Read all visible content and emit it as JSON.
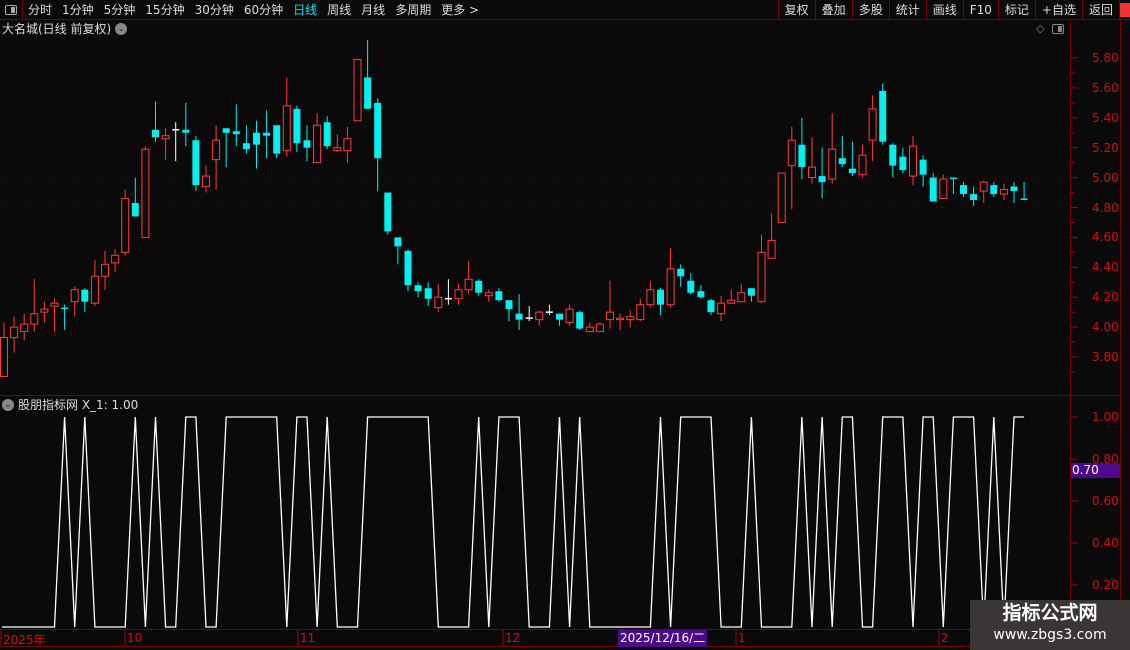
{
  "toolbar": {
    "periods": [
      "分时",
      "1分钟",
      "5分钟",
      "15分钟",
      "30分钟",
      "60分钟",
      "日线",
      "周线",
      "月线",
      "多周期",
      "更多 >"
    ],
    "active_period": "日线",
    "buttons": [
      "复权",
      "叠加",
      "多股",
      "统计",
      "画线",
      "F10",
      "标记",
      "+自选",
      "返回"
    ]
  },
  "chart": {
    "title": "大名城(日线 前复权)",
    "price_ticks": [
      "5.80",
      "5.60",
      "5.40",
      "5.20",
      "5.00",
      "4.80",
      "4.60",
      "4.40",
      "4.20",
      "4.00",
      "3.80"
    ],
    "colors": {
      "up": "#ff3b3b",
      "down": "#00f0f0",
      "flat": "#ffffff",
      "grid": "#5a0000",
      "axis_text": "#d01010"
    }
  },
  "indicator": {
    "title": "股朋指标网 X_1: 1.00",
    "ticks": [
      "1.00",
      "0.80",
      "0.60",
      "0.40",
      "0.20"
    ],
    "cursor_value": "0.70"
  },
  "time_axis": {
    "labels": [
      "2025年",
      "10",
      "11",
      "12",
      "1",
      "2"
    ],
    "highlight": "2025/12/16/二"
  },
  "watermark": {
    "line1": "指标公式网",
    "line2": "www.zbgs3.com"
  },
  "chart_data": {
    "type": "candlestick",
    "ylim": [
      3.7,
      5.95
    ],
    "ohlc": [
      [
        3.67,
        4.03,
        3.67,
        3.93
      ],
      [
        3.93,
        4.07,
        3.83,
        4.0
      ],
      [
        3.97,
        4.09,
        3.91,
        4.02
      ],
      [
        4.02,
        4.32,
        3.97,
        4.09
      ],
      [
        4.1,
        4.17,
        4.03,
        4.12
      ],
      [
        4.14,
        4.19,
        3.97,
        4.16
      ],
      [
        4.13,
        4.15,
        3.98,
        4.12
      ],
      [
        4.17,
        4.27,
        4.07,
        4.25
      ],
      [
        4.25,
        4.26,
        4.1,
        4.17
      ],
      [
        4.16,
        4.45,
        4.14,
        4.34
      ],
      [
        4.34,
        4.51,
        4.25,
        4.42
      ],
      [
        4.43,
        4.52,
        4.37,
        4.48
      ],
      [
        4.5,
        4.92,
        4.48,
        4.86
      ],
      [
        4.83,
        5.0,
        4.74,
        4.74
      ],
      [
        4.6,
        5.21,
        4.6,
        5.19
      ],
      [
        5.32,
        5.51,
        5.24,
        5.27
      ],
      [
        5.26,
        5.33,
        5.12,
        5.28
      ],
      [
        5.32,
        5.37,
        5.11,
        5.32
      ],
      [
        5.32,
        5.5,
        5.21,
        5.3
      ],
      [
        5.25,
        5.28,
        4.91,
        4.95
      ],
      [
        4.94,
        5.08,
        4.9,
        5.01
      ],
      [
        5.12,
        5.35,
        4.92,
        5.25
      ],
      [
        5.33,
        5.33,
        5.07,
        5.3
      ],
      [
        5.31,
        5.49,
        5.21,
        5.29
      ],
      [
        5.23,
        5.35,
        5.16,
        5.19
      ],
      [
        5.3,
        5.38,
        5.06,
        5.22
      ],
      [
        5.3,
        5.45,
        5.13,
        5.28
      ],
      [
        5.35,
        5.35,
        5.13,
        5.16
      ],
      [
        5.18,
        5.67,
        5.14,
        5.48
      ],
      [
        5.46,
        5.48,
        5.17,
        5.23
      ],
      [
        5.25,
        5.35,
        5.11,
        5.2
      ],
      [
        5.1,
        5.43,
        5.1,
        5.35
      ],
      [
        5.37,
        5.41,
        5.19,
        5.21
      ],
      [
        5.18,
        5.29,
        5.17,
        5.2
      ],
      [
        5.18,
        5.34,
        5.1,
        5.26
      ],
      [
        5.38,
        5.79,
        5.38,
        5.79
      ],
      [
        5.67,
        5.92,
        5.46,
        5.46
      ],
      [
        5.5,
        5.53,
        4.91,
        5.13
      ],
      [
        4.9,
        4.9,
        4.62,
        4.64
      ],
      [
        4.6,
        4.6,
        4.42,
        4.54
      ],
      [
        4.51,
        4.52,
        4.24,
        4.28
      ],
      [
        4.28,
        4.3,
        4.2,
        4.24
      ],
      [
        4.26,
        4.3,
        4.14,
        4.19
      ],
      [
        4.13,
        4.29,
        4.1,
        4.2
      ],
      [
        4.19,
        4.32,
        4.15,
        4.19
      ],
      [
        4.19,
        4.29,
        4.15,
        4.25
      ],
      [
        4.25,
        4.44,
        4.22,
        4.32
      ],
      [
        4.31,
        4.32,
        4.21,
        4.23
      ],
      [
        4.21,
        4.25,
        4.17,
        4.23
      ],
      [
        4.24,
        4.26,
        4.17,
        4.18
      ],
      [
        4.18,
        4.18,
        4.04,
        4.12
      ],
      [
        4.09,
        4.22,
        3.98,
        4.05
      ],
      [
        4.06,
        4.14,
        4.04,
        4.06
      ],
      [
        4.05,
        4.11,
        4.01,
        4.1
      ],
      [
        4.1,
        4.15,
        4.08,
        4.1
      ],
      [
        4.09,
        4.09,
        4.01,
        4.05
      ],
      [
        4.03,
        4.15,
        4.01,
        4.12
      ],
      [
        4.1,
        4.11,
        3.98,
        3.99
      ],
      [
        3.97,
        4.03,
        3.97,
        4.0
      ],
      [
        3.97,
        4.03,
        3.97,
        4.02
      ],
      [
        4.05,
        4.31,
        3.99,
        4.1
      ],
      [
        4.05,
        4.09,
        3.98,
        4.06
      ],
      [
        4.05,
        4.11,
        4.0,
        4.07
      ],
      [
        4.05,
        4.19,
        4.04,
        4.15
      ],
      [
        4.15,
        4.31,
        4.13,
        4.25
      ],
      [
        4.25,
        4.26,
        4.08,
        4.15
      ],
      [
        4.15,
        4.53,
        4.13,
        4.39
      ],
      [
        4.39,
        4.42,
        4.27,
        4.34
      ],
      [
        4.31,
        4.36,
        4.22,
        4.23
      ],
      [
        4.24,
        4.28,
        4.19,
        4.2
      ],
      [
        4.18,
        4.19,
        4.08,
        4.1
      ],
      [
        4.09,
        4.21,
        4.04,
        4.16
      ],
      [
        4.16,
        4.25,
        4.16,
        4.18
      ],
      [
        4.17,
        4.29,
        4.17,
        4.23
      ],
      [
        4.26,
        4.26,
        4.17,
        4.21
      ],
      [
        4.17,
        4.62,
        4.16,
        4.5
      ],
      [
        4.46,
        4.76,
        4.46,
        4.58
      ],
      [
        4.7,
        5.03,
        4.7,
        5.03
      ],
      [
        5.08,
        5.34,
        4.79,
        5.25
      ],
      [
        5.22,
        5.4,
        4.99,
        5.07
      ],
      [
        5.0,
        5.27,
        4.96,
        5.07
      ],
      [
        5.01,
        5.2,
        4.86,
        4.97
      ],
      [
        4.99,
        5.43,
        4.96,
        5.19
      ],
      [
        5.13,
        5.28,
        5.07,
        5.09
      ],
      [
        5.06,
        5.24,
        5.01,
        5.03
      ],
      [
        5.02,
        5.22,
        5.0,
        5.15
      ],
      [
        5.25,
        5.55,
        5.11,
        5.46
      ],
      [
        5.58,
        5.63,
        5.22,
        5.24
      ],
      [
        5.22,
        5.23,
        5.0,
        5.08
      ],
      [
        5.14,
        5.2,
        5.03,
        5.05
      ],
      [
        5.01,
        5.28,
        4.95,
        5.21
      ],
      [
        5.12,
        5.15,
        4.94,
        5.02
      ],
      [
        5.0,
        5.03,
        4.84,
        4.84
      ],
      [
        4.86,
        5.02,
        4.86,
        4.99
      ],
      [
        5.0,
        5.0,
        4.89,
        4.99
      ],
      [
        4.95,
        4.97,
        4.87,
        4.89
      ],
      [
        4.89,
        4.94,
        4.81,
        4.85
      ],
      [
        4.91,
        4.98,
        4.83,
        4.97
      ],
      [
        4.95,
        4.97,
        4.87,
        4.89
      ],
      [
        4.89,
        4.96,
        4.85,
        4.92
      ],
      [
        4.94,
        4.97,
        4.83,
        4.91
      ],
      [
        4.86,
        4.97,
        4.85,
        4.85
      ]
    ],
    "indicator_values": [
      0,
      0,
      0,
      0,
      0,
      0,
      1,
      0,
      1,
      0,
      0,
      0,
      0,
      1,
      0,
      1,
      0,
      0,
      1,
      1,
      0,
      0,
      1,
      1,
      1,
      1,
      1,
      1,
      0,
      1,
      1,
      0,
      1,
      0,
      0,
      0,
      1,
      1,
      1,
      1,
      1,
      1,
      1,
      0,
      0,
      0,
      0,
      1,
      0,
      1,
      1,
      1,
      0,
      0,
      0,
      1,
      0,
      1,
      0,
      0,
      0,
      0,
      0,
      0,
      0,
      1,
      0,
      1,
      1,
      1,
      1,
      0,
      0,
      0,
      1,
      0,
      0,
      0,
      0,
      1,
      0,
      1,
      0,
      1,
      1,
      0,
      0,
      1,
      1,
      1,
      0,
      1,
      1,
      0,
      1,
      1,
      1,
      0,
      1,
      0,
      1,
      1
    ],
    "indicator_ylim": [
      0,
      1
    ]
  }
}
